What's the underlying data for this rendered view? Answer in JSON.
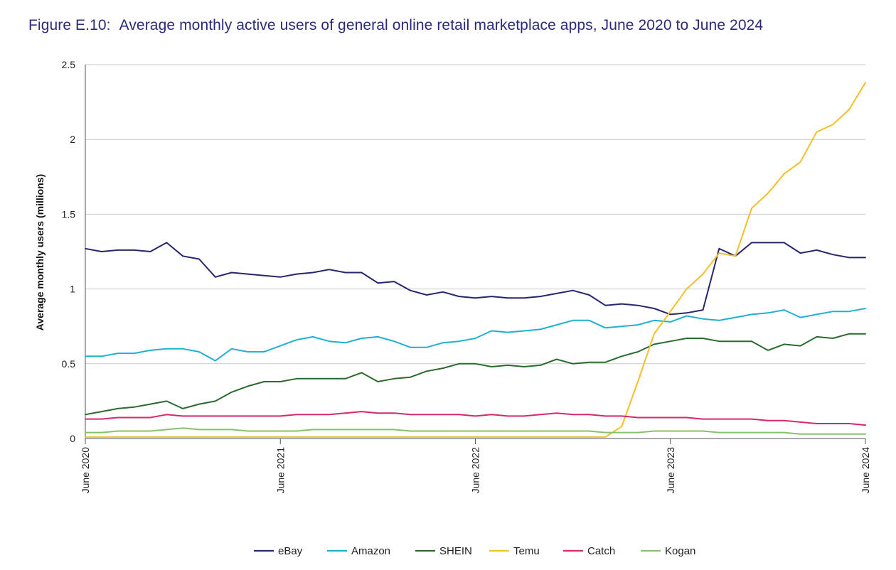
{
  "figure": {
    "label": "Figure E.10:",
    "caption": "Average monthly active users of general online retail marketplace apps, June 2020 to June 2024"
  },
  "chart_data": {
    "type": "line",
    "title": "Figure E.10: Average monthly active users of general online retail marketplace apps, June 2020 to June 2024",
    "xlabel": "",
    "ylabel": "Average monthly users (millions)",
    "ylim": [
      0,
      2.5
    ],
    "yticks": [
      0,
      0.5,
      1,
      1.5,
      2,
      2.5
    ],
    "ytick_labels": [
      "0",
      "0.5",
      "1",
      "1.5",
      "2",
      "2.5"
    ],
    "grid": true,
    "legend": "bottom",
    "x_start": "June 2020",
    "x_months": 49,
    "x_tick_index": [
      0,
      12,
      24,
      36,
      48
    ],
    "x_tick_labels": [
      "June 2020",
      "June 2021",
      "June 2022",
      "June 2023",
      "June 2024"
    ],
    "series": [
      {
        "name": "eBay",
        "color": "#26266e",
        "values": [
          1.27,
          1.25,
          1.26,
          1.26,
          1.25,
          1.31,
          1.22,
          1.2,
          1.08,
          1.11,
          1.1,
          1.09,
          1.08,
          1.1,
          1.11,
          1.13,
          1.11,
          1.11,
          1.04,
          1.05,
          0.99,
          0.96,
          0.98,
          0.95,
          0.94,
          0.95,
          0.94,
          0.94,
          0.95,
          0.97,
          0.99,
          0.96,
          0.89,
          0.9,
          0.89,
          0.87,
          0.83,
          0.84,
          0.86,
          1.27,
          1.22,
          1.31,
          1.31,
          1.31,
          1.24,
          1.26,
          1.23,
          1.21,
          1.21
        ]
      },
      {
        "name": "Amazon",
        "color": "#1fb0d4",
        "values": [
          0.55,
          0.55,
          0.57,
          0.57,
          0.59,
          0.6,
          0.6,
          0.58,
          0.52,
          0.6,
          0.58,
          0.58,
          0.62,
          0.66,
          0.68,
          0.65,
          0.64,
          0.67,
          0.68,
          0.65,
          0.61,
          0.61,
          0.64,
          0.65,
          0.67,
          0.72,
          0.71,
          0.72,
          0.73,
          0.76,
          0.79,
          0.79,
          0.74,
          0.75,
          0.76,
          0.79,
          0.78,
          0.82,
          0.8,
          0.79,
          0.81,
          0.83,
          0.84,
          0.86,
          0.81,
          0.83,
          0.85,
          0.85,
          0.87
        ]
      },
      {
        "name": "SHEIN",
        "color": "#2a6b2d",
        "values": [
          0.16,
          0.18,
          0.2,
          0.21,
          0.23,
          0.25,
          0.2,
          0.23,
          0.25,
          0.31,
          0.35,
          0.38,
          0.38,
          0.4,
          0.4,
          0.4,
          0.4,
          0.44,
          0.38,
          0.4,
          0.41,
          0.45,
          0.47,
          0.5,
          0.5,
          0.48,
          0.49,
          0.48,
          0.49,
          0.53,
          0.5,
          0.51,
          0.51,
          0.55,
          0.58,
          0.63,
          0.65,
          0.67,
          0.67,
          0.65,
          0.65,
          0.65,
          0.59,
          0.63,
          0.62,
          0.68,
          0.67,
          0.7,
          0.7
        ]
      },
      {
        "name": "Temu",
        "color": "#f4bf2a",
        "values": [
          0.01,
          0.01,
          0.01,
          0.01,
          0.01,
          0.01,
          0.01,
          0.01,
          0.01,
          0.01,
          0.01,
          0.01,
          0.01,
          0.01,
          0.01,
          0.01,
          0.01,
          0.01,
          0.01,
          0.01,
          0.01,
          0.01,
          0.01,
          0.01,
          0.01,
          0.01,
          0.01,
          0.01,
          0.01,
          0.01,
          0.01,
          0.01,
          0.01,
          0.08,
          0.38,
          0.7,
          0.85,
          1.0,
          1.1,
          1.24,
          1.22,
          1.54,
          1.64,
          1.77,
          1.85,
          2.05,
          2.1,
          2.2,
          2.38
        ]
      },
      {
        "name": "Catch",
        "color": "#d42a6a",
        "values": [
          0.13,
          0.13,
          0.14,
          0.14,
          0.14,
          0.16,
          0.15,
          0.15,
          0.15,
          0.15,
          0.15,
          0.15,
          0.15,
          0.16,
          0.16,
          0.16,
          0.17,
          0.18,
          0.17,
          0.17,
          0.16,
          0.16,
          0.16,
          0.16,
          0.15,
          0.16,
          0.15,
          0.15,
          0.16,
          0.17,
          0.16,
          0.16,
          0.15,
          0.15,
          0.14,
          0.14,
          0.14,
          0.14,
          0.13,
          0.13,
          0.13,
          0.13,
          0.12,
          0.12,
          0.11,
          0.1,
          0.1,
          0.1,
          0.09
        ]
      },
      {
        "name": "Kogan",
        "color": "#86c06a",
        "values": [
          0.04,
          0.04,
          0.05,
          0.05,
          0.05,
          0.06,
          0.07,
          0.06,
          0.06,
          0.06,
          0.05,
          0.05,
          0.05,
          0.05,
          0.06,
          0.06,
          0.06,
          0.06,
          0.06,
          0.06,
          0.05,
          0.05,
          0.05,
          0.05,
          0.05,
          0.05,
          0.05,
          0.05,
          0.05,
          0.05,
          0.05,
          0.05,
          0.04,
          0.04,
          0.04,
          0.05,
          0.05,
          0.05,
          0.05,
          0.04,
          0.04,
          0.04,
          0.04,
          0.04,
          0.03,
          0.03,
          0.03,
          0.03,
          0.03
        ]
      }
    ]
  }
}
